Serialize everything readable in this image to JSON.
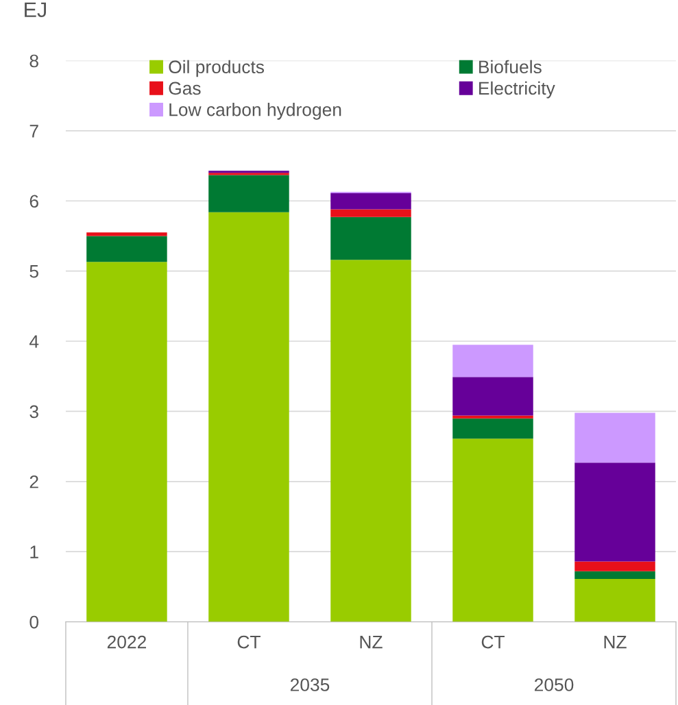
{
  "chart_data": {
    "type": "bar",
    "stacked": true,
    "ylabel": "EJ",
    "categories": [
      "2022",
      "CT",
      "NZ",
      "CT",
      "NZ"
    ],
    "annotations": [
      "2035",
      "2050"
    ],
    "series": [
      {
        "name": "Oil products",
        "color": "#99cc00",
        "values": [
          5.13,
          5.84,
          5.16,
          2.61,
          0.61
        ]
      },
      {
        "name": "Biofuels",
        "color": "#007a33",
        "values": [
          0.37,
          0.53,
          0.61,
          0.29,
          0.11
        ]
      },
      {
        "name": "Gas",
        "color": "#e8101a",
        "values": [
          0.05,
          0.03,
          0.11,
          0.04,
          0.14
        ]
      },
      {
        "name": "Electricity",
        "color": "#660099",
        "values": [
          0,
          0.03,
          0.23,
          0.55,
          1.41
        ]
      },
      {
        "name": "Low carbon hydrogen",
        "color": "#cc99ff",
        "values": [
          0,
          0,
          0.02,
          0.46,
          0.71
        ]
      }
    ],
    "ylim": [
      0,
      8
    ],
    "yticks": [
      0,
      1,
      2,
      3,
      4,
      5,
      6,
      7,
      8
    ],
    "grid": "y",
    "legend": "top"
  }
}
